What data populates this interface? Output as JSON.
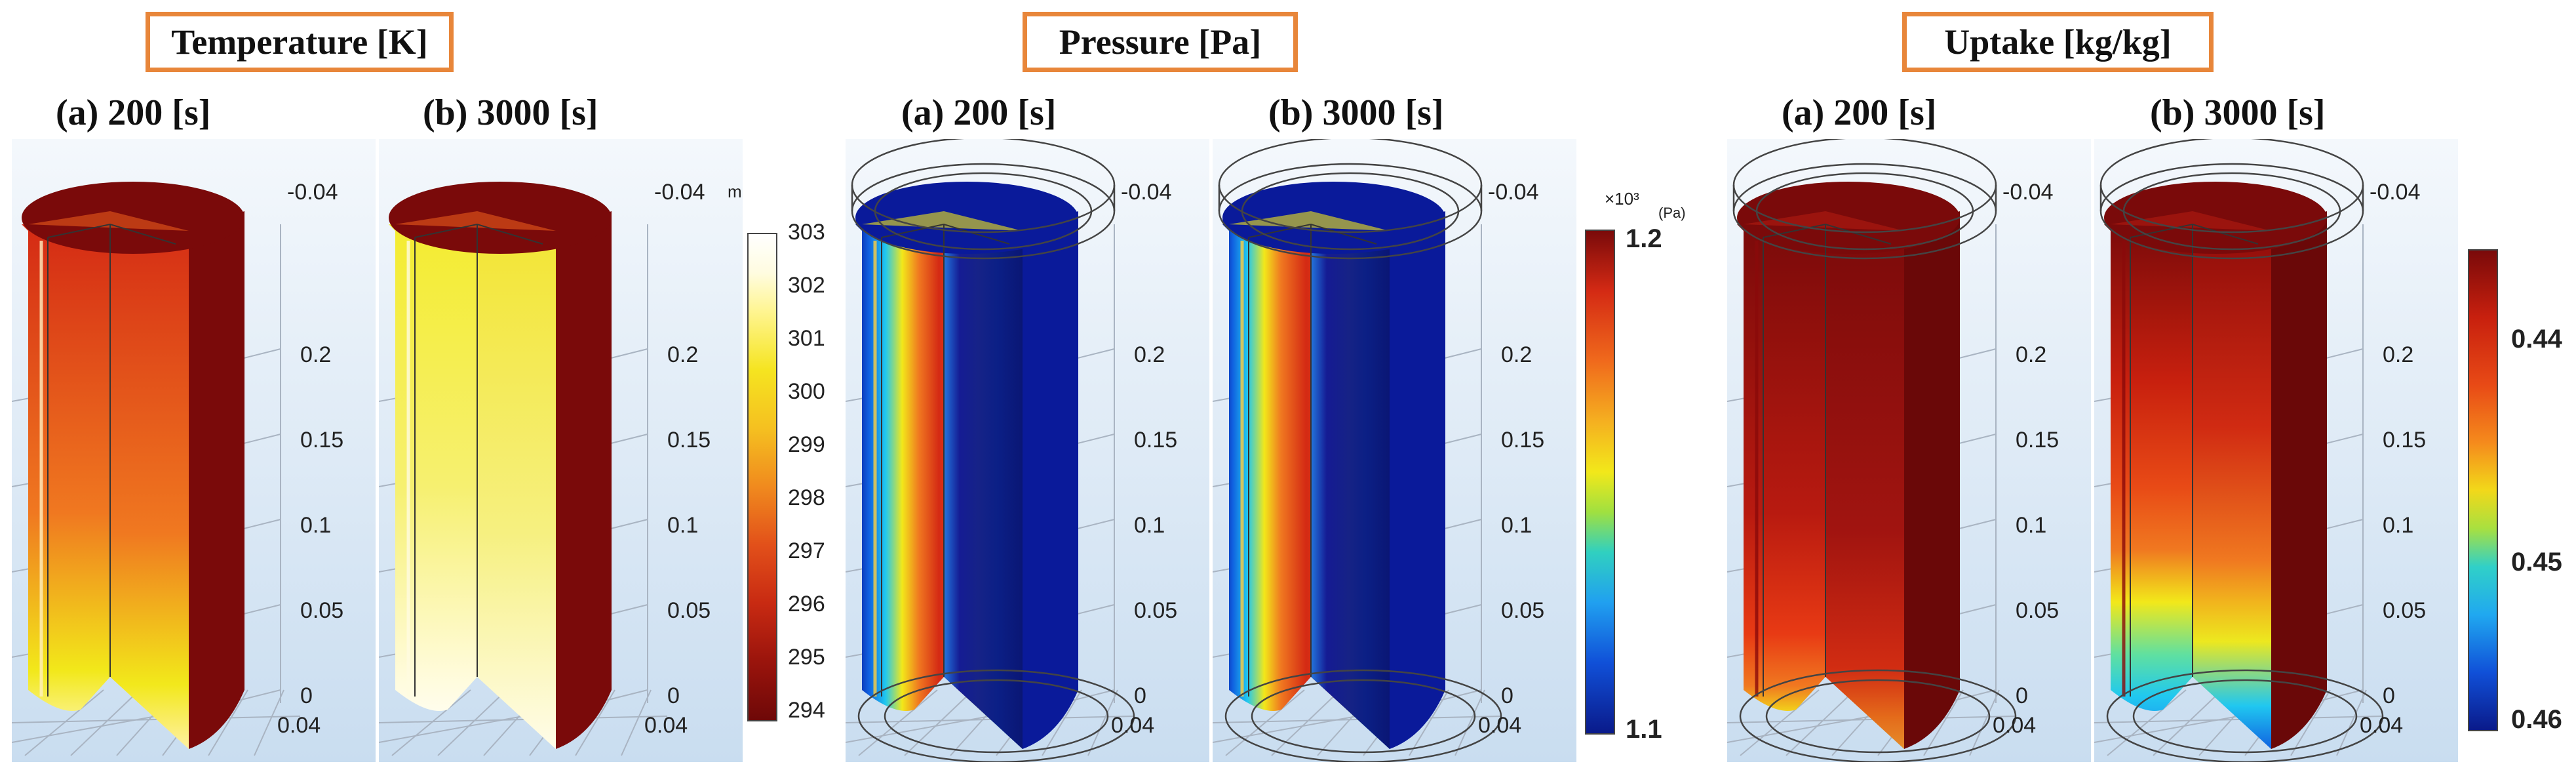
{
  "sections": [
    {
      "title": "Temperature [K]"
    },
    {
      "title": "Pressure [Pa]"
    },
    {
      "title": "Uptake [kg/kg]"
    }
  ],
  "panels": [
    {
      "label": "(a) 200 [s]",
      "field": "temperature"
    },
    {
      "label": "(b) 3000 [s]",
      "field": "temperature"
    },
    {
      "label": "(a) 200 [s]",
      "field": "pressure"
    },
    {
      "label": "(b) 3000 [s]",
      "field": "pressure"
    },
    {
      "label": "(a) 200 [s]",
      "field": "uptake"
    },
    {
      "label": "(b) 3000 [s]",
      "field": "uptake"
    }
  ],
  "axis": {
    "z_ticks": [
      "0",
      "0.05",
      "0.1",
      "0.15",
      "0.2"
    ],
    "top_tick": "-0.04",
    "bottom_tick": "0.04",
    "unit": "m"
  },
  "colorbars": {
    "temperature": {
      "ticks": [
        "303",
        "302",
        "301",
        "300",
        "299",
        "298",
        "297",
        "296",
        "295",
        "294"
      ]
    },
    "pressure": {
      "multiplier": "×10³",
      "unit": "(Pa)",
      "ticks": [
        "1.2",
        "1.1"
      ]
    },
    "uptake": {
      "ticks": [
        "0.44",
        "0.45",
        "0.46"
      ]
    }
  },
  "colors": {
    "title_border": "#E8863A",
    "dark_red": "#7A0A0A",
    "red": "#D42A14",
    "orange": "#F07820",
    "yellow": "#F2E81A",
    "pale_yellow": "#FFF8C8",
    "blue": "#0A1A9A",
    "cyan": "#20C8F0",
    "white": "#FFFFFF"
  }
}
